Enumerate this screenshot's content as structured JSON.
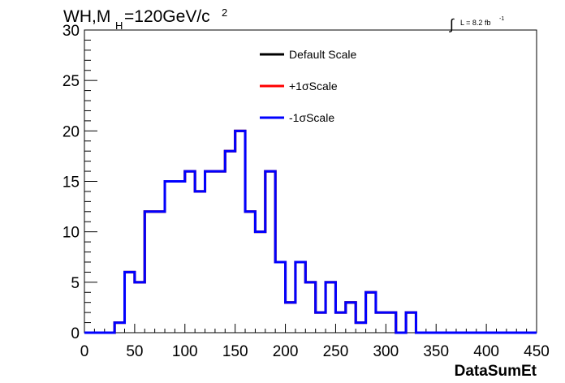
{
  "title": {
    "prefix": "WH,M",
    "subscript": "H",
    "value": "=120GeV/c",
    "superscript": "2"
  },
  "luminosity": {
    "integral_symbol": "∫",
    "text": "L = 8.2 fb",
    "exponent": "-1"
  },
  "colors": {
    "default": "#000000",
    "plus": "#ff0000",
    "minus": "#0000ff"
  },
  "chart_data": {
    "type": "histogram",
    "xlabel": "DataSumEt",
    "ylabel": "",
    "xlim": [
      0,
      450
    ],
    "ylim": [
      0,
      30
    ],
    "xticks": [
      0,
      50,
      100,
      150,
      200,
      250,
      300,
      350,
      400,
      450
    ],
    "yticks": [
      0,
      5,
      10,
      15,
      20,
      25,
      30
    ],
    "bin_width": 10,
    "bin_edges_start": 0,
    "legend": [
      {
        "name": "Default Scale",
        "color": "#000000"
      },
      {
        "name": "+1σScale",
        "color": "#ff0000"
      },
      {
        "name": "-1σScale",
        "color": "#0000ff"
      }
    ],
    "legend_position": "top-center",
    "series": [
      {
        "name": "Default Scale",
        "color": "#000000",
        "values": [
          0,
          0,
          0,
          1,
          6,
          5,
          12,
          12,
          15,
          15,
          16,
          14,
          16,
          16,
          18,
          20,
          12,
          10,
          16,
          7,
          3,
          7,
          5,
          2,
          5,
          2,
          3,
          1,
          4,
          2,
          2,
          0,
          2,
          0,
          0,
          0,
          0,
          0,
          0,
          0,
          0,
          0,
          0,
          0,
          0
        ]
      },
      {
        "name": "+1σScale",
        "color": "#ff0000",
        "values": [
          0,
          0,
          0,
          1,
          6,
          5,
          12,
          12,
          15,
          15,
          16,
          14,
          16,
          16,
          18,
          20,
          12,
          10,
          16,
          7,
          3,
          7,
          5,
          2,
          5,
          2,
          3,
          1,
          4,
          2,
          2,
          0,
          2,
          0,
          0,
          0,
          0,
          0,
          0,
          0,
          0,
          0,
          0,
          0,
          0
        ]
      },
      {
        "name": "-1σScale",
        "color": "#0000ff",
        "values": [
          0,
          0,
          0,
          1,
          6,
          5,
          12,
          12,
          15,
          15,
          16,
          14,
          16,
          16,
          18,
          20,
          12,
          10,
          16,
          7,
          3,
          7,
          5,
          2,
          5,
          2,
          3,
          1,
          4,
          2,
          2,
          0,
          2,
          0,
          0,
          0,
          0,
          0,
          0,
          0,
          0,
          0,
          0,
          0,
          0
        ]
      }
    ]
  }
}
